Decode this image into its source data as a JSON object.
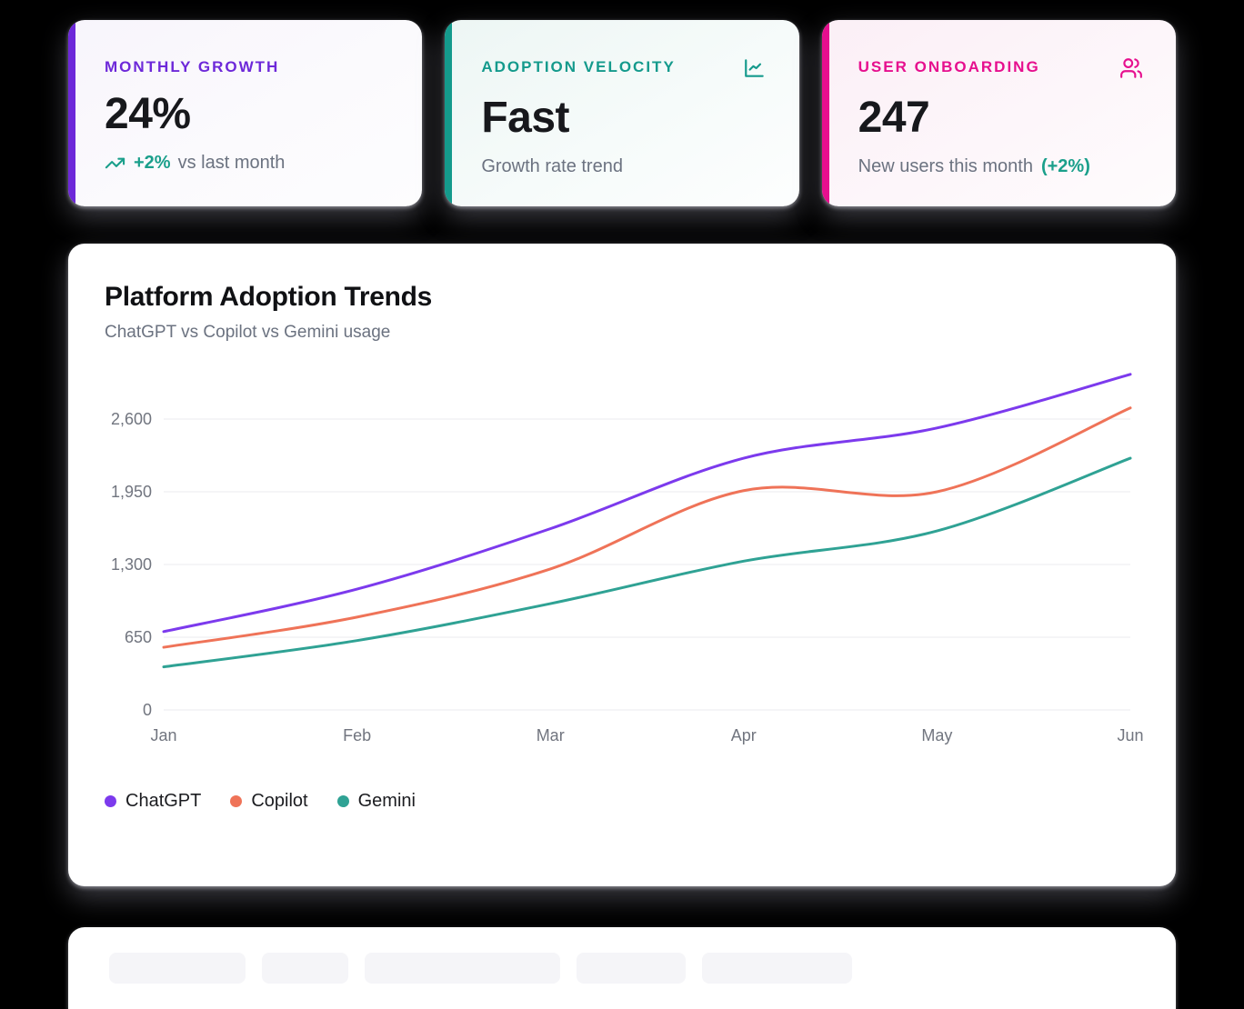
{
  "stat_cards": [
    {
      "title": "MONTHLY GROWTH",
      "value": "24%",
      "delta": "+2%",
      "delta_note": "vs last month",
      "accent": "#6d28d9",
      "icon": "trending-up-icon"
    },
    {
      "title": "ADOPTION VELOCITY",
      "value": "Fast",
      "note": "Growth rate trend",
      "accent": "#149a8c",
      "icon": "line-chart-icon"
    },
    {
      "title": "USER ONBOARDING",
      "value": "247",
      "note": "New users this month",
      "delta": "(+2%)",
      "accent": "#e60f8e",
      "icon": "users-icon"
    }
  ],
  "chart_card": {
    "title": "Platform Adoption Trends",
    "subtitle": "ChatGPT vs Copilot vs Gemini usage"
  },
  "chart_data": {
    "type": "line",
    "x": [
      "Jan",
      "Feb",
      "Mar",
      "Apr",
      "May",
      "Jun"
    ],
    "series": [
      {
        "name": "ChatGPT",
        "color": "#7c3aed",
        "values": [
          700,
          1080,
          1620,
          2250,
          2520,
          3000
        ]
      },
      {
        "name": "Copilot",
        "color": "#ef7358",
        "values": [
          560,
          830,
          1260,
          1960,
          1950,
          2700
        ]
      },
      {
        "name": "Gemini",
        "color": "#2fa294",
        "values": [
          385,
          620,
          950,
          1330,
          1600,
          2250
        ]
      }
    ],
    "yticks": [
      0,
      650,
      1300,
      1950,
      2600
    ],
    "ytick_labels": [
      "0",
      "650",
      "1,300",
      "1,950",
      "2,600"
    ],
    "ylim": [
      0,
      3050
    ],
    "grid": true,
    "smooth": true,
    "legend_position": "bottom",
    "grid_color": "#ebebef",
    "tick_color": "#71757f"
  },
  "colors": {
    "positive": "#1a9f8b",
    "text_muted": "#6b7280",
    "text_dark": "#17181c"
  }
}
